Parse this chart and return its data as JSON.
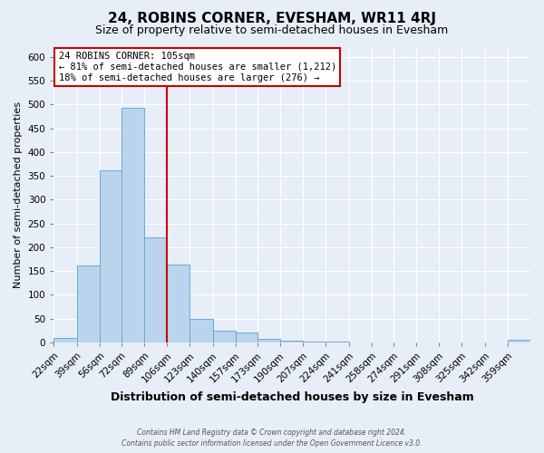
{
  "title": "24, ROBINS CORNER, EVESHAM, WR11 4RJ",
  "subtitle": "Size of property relative to semi-detached houses in Evesham",
  "xlabel": "Distribution of semi-detached houses by size in Evesham",
  "ylabel": "Number of semi-detached properties",
  "bin_labels": [
    "22sqm",
    "39sqm",
    "56sqm",
    "72sqm",
    "89sqm",
    "106sqm",
    "123sqm",
    "140sqm",
    "157sqm",
    "173sqm",
    "190sqm",
    "207sqm",
    "224sqm",
    "241sqm",
    "258sqm",
    "274sqm",
    "291sqm",
    "308sqm",
    "325sqm",
    "342sqm",
    "359sqm"
  ],
  "bin_edges": [
    22,
    39,
    56,
    72,
    89,
    106,
    123,
    140,
    157,
    173,
    190,
    207,
    224,
    241,
    258,
    274,
    291,
    308,
    325,
    342,
    359,
    376
  ],
  "bar_heights": [
    10,
    162,
    362,
    493,
    220,
    163,
    50,
    25,
    20,
    8,
    3,
    1,
    1,
    0,
    0,
    0,
    0,
    0,
    0,
    0,
    5
  ],
  "bar_color": "#bad4ed",
  "bar_edge_color": "#6aaad4",
  "vline_x": 106,
  "vline_color": "#cc0000",
  "annotation_title": "24 ROBINS CORNER: 105sqm",
  "annotation_line1": "← 81% of semi-detached houses are smaller (1,212)",
  "annotation_line2": "18% of semi-detached houses are larger (276) →",
  "annotation_box_facecolor": "#ffffff",
  "annotation_box_edgecolor": "#cc0000",
  "ylim": [
    0,
    620
  ],
  "yticks": [
    0,
    50,
    100,
    150,
    200,
    250,
    300,
    350,
    400,
    450,
    500,
    550,
    600
  ],
  "footer1": "Contains HM Land Registry data © Crown copyright and database right 2024.",
  "footer2": "Contains public sector information licensed under the Open Government Licence v3.0.",
  "bg_color": "#e8eef7",
  "plot_bg_color": "#e8eef7",
  "grid_color": "#ffffff",
  "title_fontsize": 11,
  "subtitle_fontsize": 9,
  "xlabel_fontsize": 9,
  "ylabel_fontsize": 8,
  "tick_fontsize": 7.5
}
